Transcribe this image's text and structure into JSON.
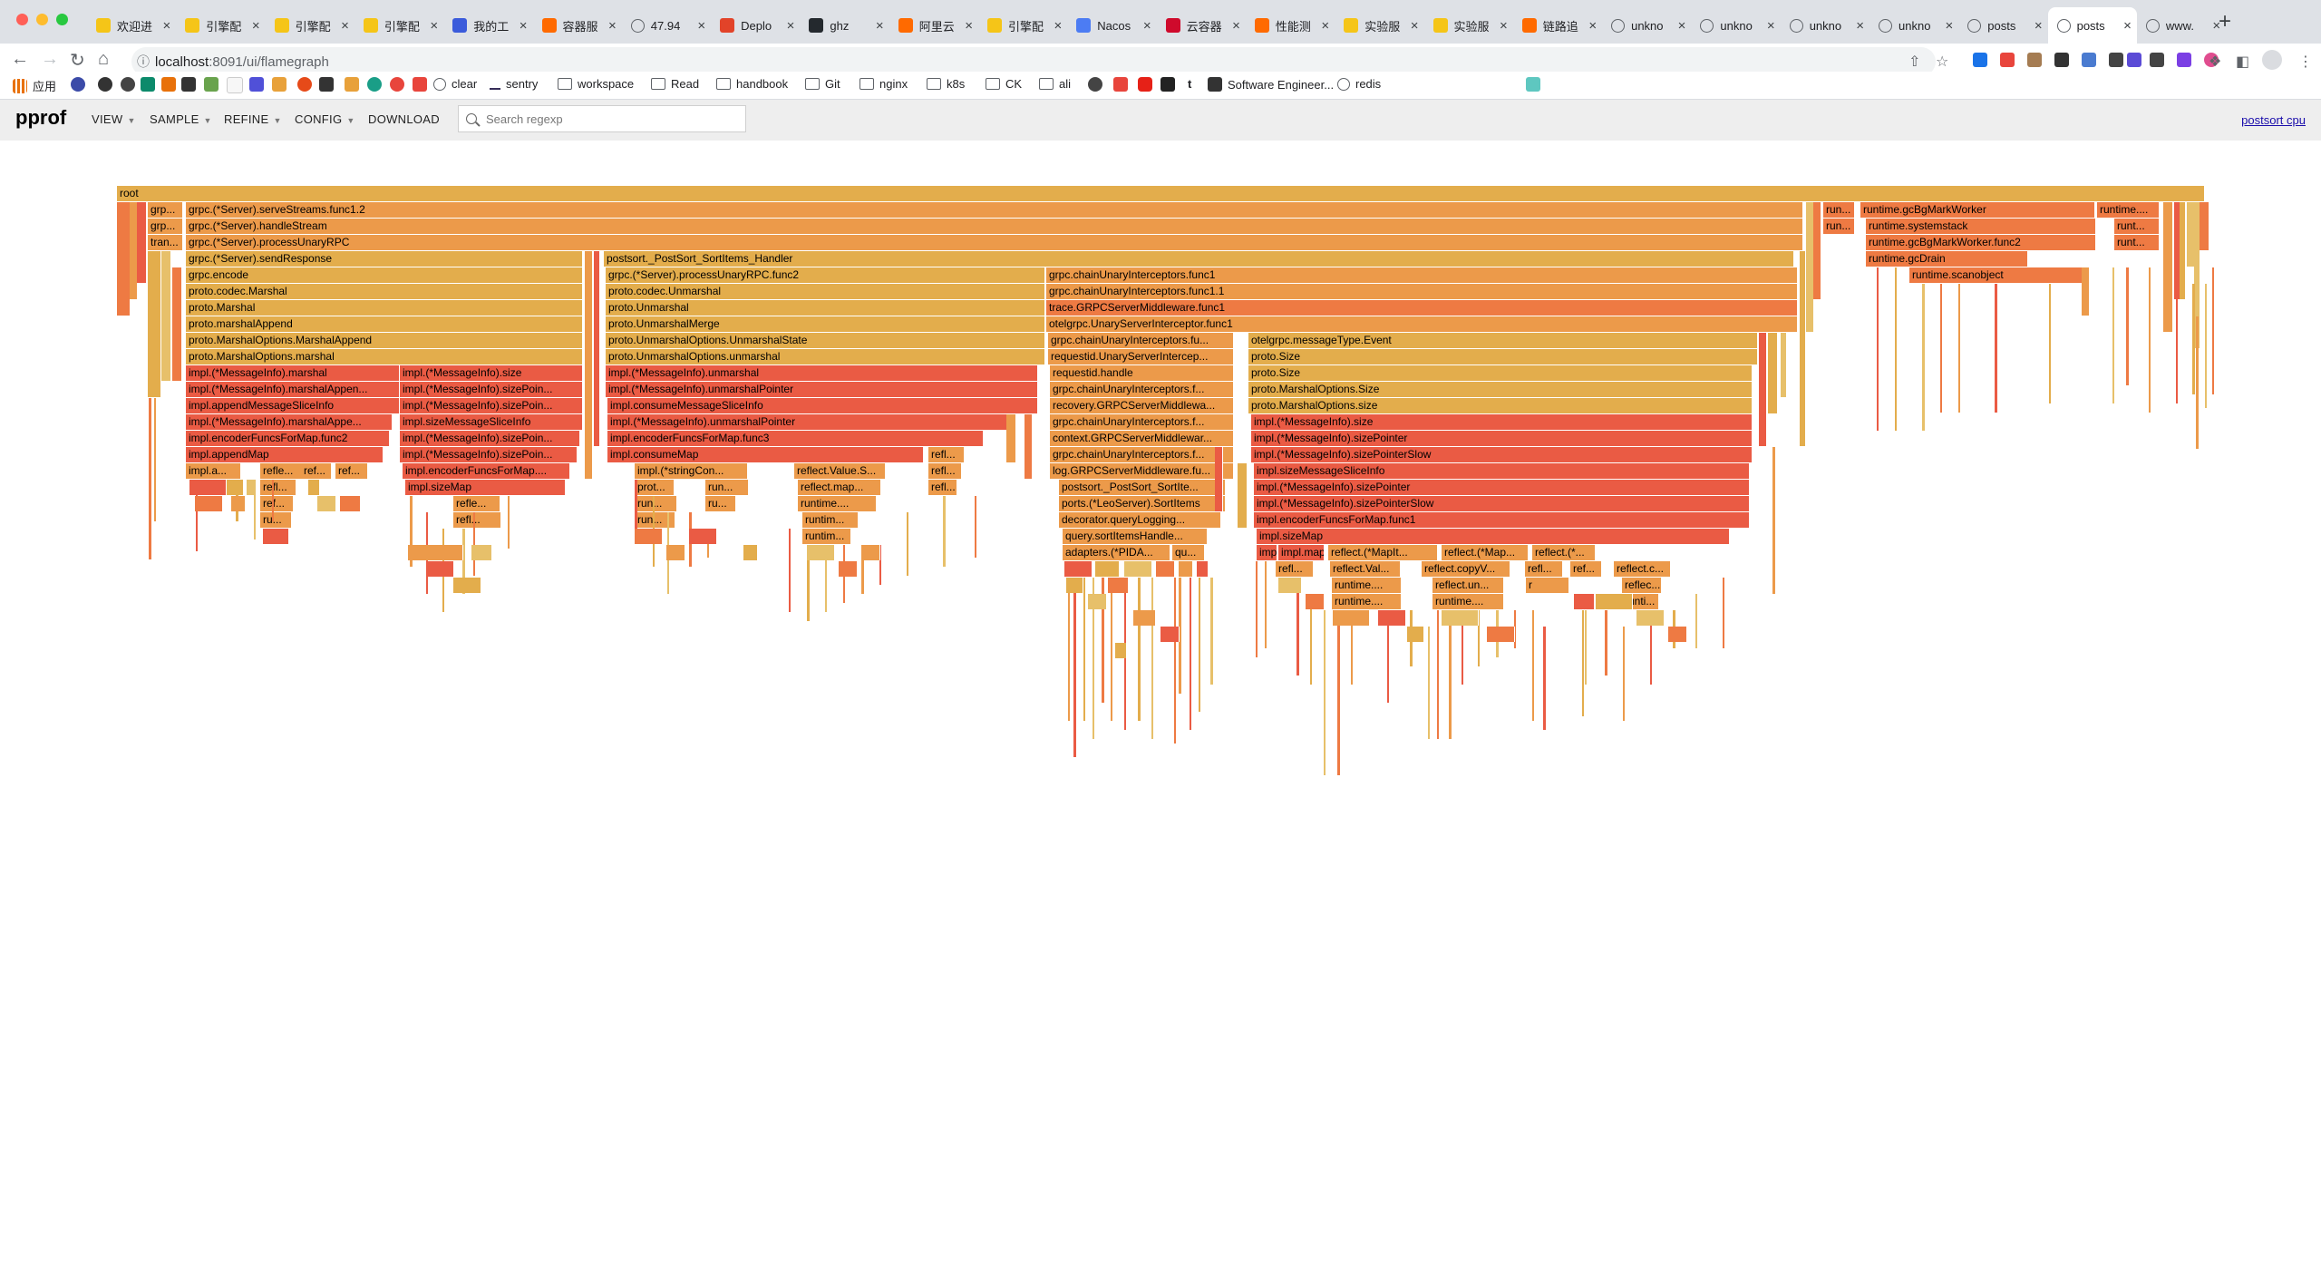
{
  "browser": {
    "tabs": [
      {
        "title": "欢迎进",
        "icon": "yellow-brand-icon"
      },
      {
        "title": "引擎配",
        "icon": "yellow-brand-icon"
      },
      {
        "title": "引擎配",
        "icon": "yellow-brand-icon"
      },
      {
        "title": "引擎配",
        "icon": "yellow-brand-icon"
      },
      {
        "title": "我的工",
        "icon": "blue-app-icon"
      },
      {
        "title": "容器服",
        "icon": "aliyun-icon"
      },
      {
        "title": "47.94",
        "icon": "globe-icon"
      },
      {
        "title": "Deplo",
        "icon": "gitlab-icon"
      },
      {
        "title": "ghz",
        "icon": "github-icon"
      },
      {
        "title": "阿里云",
        "icon": "aliyun-icon"
      },
      {
        "title": "引擎配",
        "icon": "yellow-brand-icon"
      },
      {
        "title": "Nacos",
        "icon": "nacos-icon"
      },
      {
        "title": "云容器",
        "icon": "huawei-icon"
      },
      {
        "title": "性能测",
        "icon": "aliyun-icon"
      },
      {
        "title": "实验服",
        "icon": "yellow-brand-icon"
      },
      {
        "title": "实验服",
        "icon": "yellow-brand-icon"
      },
      {
        "title": "链路追",
        "icon": "aliyun-icon"
      },
      {
        "title": "unkno",
        "icon": "globe-icon"
      },
      {
        "title": "unkno",
        "icon": "globe-icon"
      },
      {
        "title": "unkno",
        "icon": "globe-icon"
      },
      {
        "title": "unkno",
        "icon": "globe-icon"
      },
      {
        "title": "posts",
        "icon": "globe-icon"
      },
      {
        "title": "posts",
        "icon": "globe-icon",
        "active": true
      },
      {
        "title": "www.",
        "icon": "globe-icon"
      }
    ],
    "url_host": "localhost",
    "url_path": ":8091/ui/flamegraph",
    "bookmarks": [
      {
        "label": "应用",
        "icon": "apps-grid-icon"
      },
      {
        "label": "clear",
        "icon": "globe-icon"
      },
      {
        "label": "sentry",
        "icon": "sentry-icon"
      },
      {
        "label": "workspace",
        "icon": "folder-icon"
      },
      {
        "label": "Read",
        "icon": "folder-icon"
      },
      {
        "label": "handbook",
        "icon": "folder-icon"
      },
      {
        "label": "Git",
        "icon": "folder-icon"
      },
      {
        "label": "nginx",
        "icon": "folder-icon"
      },
      {
        "label": "k8s",
        "icon": "folder-icon"
      },
      {
        "label": "CK",
        "icon": "folder-icon"
      },
      {
        "label": "ali",
        "icon": "folder-icon"
      },
      {
        "label": "t",
        "icon": "text-icon"
      },
      {
        "label": "Software Engineer...",
        "icon": "page-icon"
      },
      {
        "label": "redis",
        "icon": "globe-icon"
      }
    ]
  },
  "pprof": {
    "logo": "pprof",
    "menus": [
      "VIEW",
      "SAMPLE",
      "REFINE",
      "CONFIG",
      "DOWNLOAD"
    ],
    "search_placeholder": "Search regexp",
    "profile_link": "postsort cpu"
  },
  "colors": {
    "frame_light": "#e3ad4c",
    "frame_mid": "#ec9a4a",
    "frame_orange": "#ee7a43",
    "frame_hot": "#ea5b44",
    "frame_pale": "#e7c06a",
    "background": "#ffffff"
  },
  "flamegraph": {
    "frames": [
      {
        "label": "root",
        "color": "light"
      },
      {
        "label": "grp...",
        "color": "mid"
      },
      {
        "label": "grpc.(*Server).serveStreams.func1.2",
        "color": "mid"
      },
      {
        "label": "run...",
        "color": "orange"
      },
      {
        "label": "runtime.gcBgMarkWorker",
        "color": "orange"
      },
      {
        "label": "runtime....",
        "color": "orange"
      },
      {
        "label": "grp...",
        "color": "mid"
      },
      {
        "label": "grpc.(*Server).handleStream",
        "color": "mid"
      },
      {
        "label": "run...",
        "color": "orange"
      },
      {
        "label": "runtime.systemstack",
        "color": "orange"
      },
      {
        "label": "runt...",
        "color": "orange"
      },
      {
        "label": "tran...",
        "color": "mid"
      },
      {
        "label": "grpc.(*Server).processUnaryRPC",
        "color": "mid"
      },
      {
        "label": "runtime.gcBgMarkWorker.func2",
        "color": "orange"
      },
      {
        "label": "runt...",
        "color": "orange"
      },
      {
        "label": "grpc.(*Server).sendResponse",
        "color": "light"
      },
      {
        "label": "postsort._PostSort_SortItems_Handler",
        "color": "light"
      },
      {
        "label": "runtime.gcDrain",
        "color": "orange"
      },
      {
        "label": "grpc.encode",
        "color": "light"
      },
      {
        "label": "grpc.(*Server).processUnaryRPC.func2",
        "color": "light"
      },
      {
        "label": "grpc.chainUnaryInterceptors.func1",
        "color": "mid"
      },
      {
        "label": "runtime.scanobject",
        "color": "orange"
      },
      {
        "label": "proto.codec.Marshal",
        "color": "light"
      },
      {
        "label": "proto.codec.Unmarshal",
        "color": "light"
      },
      {
        "label": "grpc.chainUnaryInterceptors.func1.1",
        "color": "mid"
      },
      {
        "label": "proto.Marshal",
        "color": "light"
      },
      {
        "label": "proto.Unmarshal",
        "color": "light"
      },
      {
        "label": "trace.GRPCServerMiddleware.func1",
        "color": "orange"
      },
      {
        "label": "proto.marshalAppend",
        "color": "light"
      },
      {
        "label": "proto.UnmarshalMerge",
        "color": "light"
      },
      {
        "label": "otelgrpc.UnaryServerInterceptor.func1",
        "color": "mid"
      },
      {
        "label": "proto.MarshalOptions.MarshalAppend",
        "color": "light"
      },
      {
        "label": "proto.UnmarshalOptions.UnmarshalState",
        "color": "light"
      },
      {
        "label": "grpc.chainUnaryInterceptors.fu...",
        "color": "mid"
      },
      {
        "label": "otelgrpc.messageType.Event",
        "color": "light"
      },
      {
        "label": "proto.MarshalOptions.marshal",
        "color": "light"
      },
      {
        "label": "proto.UnmarshalOptions.unmarshal",
        "color": "light"
      },
      {
        "label": "requestid.UnaryServerIntercep...",
        "color": "mid"
      },
      {
        "label": "proto.Size",
        "color": "light"
      },
      {
        "label": "impl.(*MessageInfo).marshal",
        "color": "hot"
      },
      {
        "label": "impl.(*MessageInfo).size",
        "color": "hot"
      },
      {
        "label": "impl.(*MessageInfo).unmarshal",
        "color": "hot"
      },
      {
        "label": "requestid.handle",
        "color": "mid"
      },
      {
        "label": "proto.Size",
        "color": "light"
      },
      {
        "label": "impl.(*MessageInfo).marshalAppen...",
        "color": "hot"
      },
      {
        "label": "impl.(*MessageInfo).sizePoin...",
        "color": "hot"
      },
      {
        "label": "impl.(*MessageInfo).unmarshalPointer",
        "color": "hot"
      },
      {
        "label": "grpc.chainUnaryInterceptors.f...",
        "color": "mid"
      },
      {
        "label": "proto.MarshalOptions.Size",
        "color": "light"
      },
      {
        "label": "impl.appendMessageSliceInfo",
        "color": "hot"
      },
      {
        "label": "impl.(*MessageInfo).sizePoin...",
        "color": "hot"
      },
      {
        "label": "impl.consumeMessageSliceInfo",
        "color": "hot"
      },
      {
        "label": "recovery.GRPCServerMiddlewa...",
        "color": "mid"
      },
      {
        "label": "proto.MarshalOptions.size",
        "color": "light"
      },
      {
        "label": "impl.(*MessageInfo).marshalAppe...",
        "color": "hot"
      },
      {
        "label": "impl.sizeMessageSliceInfo",
        "color": "hot"
      },
      {
        "label": "impl.(*MessageInfo).unmarshalPointer",
        "color": "hot"
      },
      {
        "label": "grpc.chainUnaryInterceptors.f...",
        "color": "mid"
      },
      {
        "label": "impl.(*MessageInfo).size",
        "color": "hot"
      },
      {
        "label": "impl.encoderFuncsForMap.func2",
        "color": "hot"
      },
      {
        "label": "impl.(*MessageInfo).sizePoin...",
        "color": "hot"
      },
      {
        "label": "impl.encoderFuncsForMap.func3",
        "color": "hot"
      },
      {
        "label": "context.GRPCServerMiddlewar...",
        "color": "mid"
      },
      {
        "label": "impl.(*MessageInfo).sizePointer",
        "color": "hot"
      },
      {
        "label": "impl.appendMap",
        "color": "hot"
      },
      {
        "label": "impl.(*MessageInfo).sizePoin...",
        "color": "hot"
      },
      {
        "label": "impl.consumeMap",
        "color": "hot"
      },
      {
        "label": "refl...",
        "color": "mid"
      },
      {
        "label": "grpc.chainUnaryInterceptors.f...",
        "color": "mid"
      },
      {
        "label": "impl.(*MessageInfo).sizePointerSlow",
        "color": "hot"
      },
      {
        "label": "impl.a...",
        "color": "mid"
      },
      {
        "label": "refle...",
        "color": "mid"
      },
      {
        "label": "ref...",
        "color": "mid"
      },
      {
        "label": "ref...",
        "color": "mid"
      },
      {
        "label": "impl.encoderFuncsForMap....",
        "color": "hot"
      },
      {
        "label": "impl.(*stringCon...",
        "color": "mid"
      },
      {
        "label": "reflect.Value.S...",
        "color": "mid"
      },
      {
        "label": "refl...",
        "color": "mid"
      },
      {
        "label": "log.GRPCServerMiddleware.fu...",
        "color": "mid"
      },
      {
        "label": "impl.sizeMessageSliceInfo",
        "color": "hot"
      },
      {
        "label": "refl...",
        "color": "mid"
      },
      {
        "label": "impl.sizeMap",
        "color": "hot"
      },
      {
        "label": "prot...",
        "color": "mid"
      },
      {
        "label": "run...",
        "color": "mid"
      },
      {
        "label": "reflect.map...",
        "color": "mid"
      },
      {
        "label": "refl...",
        "color": "mid"
      },
      {
        "label": "postsort._PostSort_SortIte...",
        "color": "mid"
      },
      {
        "label": "impl.(*MessageInfo).sizePointer",
        "color": "hot"
      },
      {
        "label": "ref...",
        "color": "mid"
      },
      {
        "label": "refle...",
        "color": "mid"
      },
      {
        "label": "run...",
        "color": "mid"
      },
      {
        "label": "ru...",
        "color": "mid"
      },
      {
        "label": "runtime....",
        "color": "mid"
      },
      {
        "label": "ports.(*LeoServer).SortItems",
        "color": "mid"
      },
      {
        "label": "impl.(*MessageInfo).sizePointerSlow",
        "color": "hot"
      },
      {
        "label": "ru...",
        "color": "mid"
      },
      {
        "label": "refl...",
        "color": "mid"
      },
      {
        "label": "run...",
        "color": "mid"
      },
      {
        "label": "runtim...",
        "color": "mid"
      },
      {
        "label": "decorator.queryLogging...",
        "color": "mid"
      },
      {
        "label": "impl.encoderFuncsForMap.func1",
        "color": "hot"
      },
      {
        "label": "runtim...",
        "color": "mid"
      },
      {
        "label": "query.sortItemsHandle...",
        "color": "mid"
      },
      {
        "label": "impl.sizeMap",
        "color": "hot"
      },
      {
        "label": "adapters.(*PIDA...",
        "color": "mid"
      },
      {
        "label": "qu...",
        "color": "mid"
      },
      {
        "label": "impl.(*...",
        "color": "hot"
      },
      {
        "label": "impl.mapR...",
        "color": "hot"
      },
      {
        "label": "reflect.(*MapIt...",
        "color": "mid"
      },
      {
        "label": "reflect.(*Map...",
        "color": "mid"
      },
      {
        "label": "reflect.(*...",
        "color": "mid"
      },
      {
        "label": "refl...",
        "color": "mid"
      },
      {
        "label": "reflect.Val...",
        "color": "mid"
      },
      {
        "label": "reflect.copyV...",
        "color": "mid"
      },
      {
        "label": "refl...",
        "color": "mid"
      },
      {
        "label": "ref...",
        "color": "mid"
      },
      {
        "label": "reflect.c...",
        "color": "mid"
      },
      {
        "label": "runtime....",
        "color": "mid"
      },
      {
        "label": "reflect.un...",
        "color": "mid"
      },
      {
        "label": "run...",
        "color": "mid"
      },
      {
        "label": "reflec...",
        "color": "mid"
      },
      {
        "label": "runtime....",
        "color": "mid"
      },
      {
        "label": "runtime....",
        "color": "mid"
      },
      {
        "label": "runti...",
        "color": "mid"
      }
    ]
  }
}
